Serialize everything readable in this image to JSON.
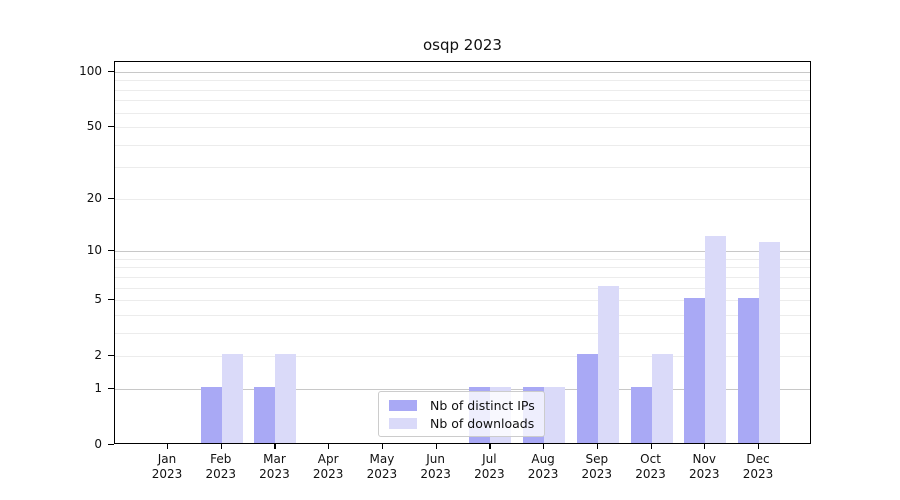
{
  "title": "osqp 2023",
  "chart_data": {
    "type": "bar",
    "title": "osqp 2023",
    "categories": [
      "Jan",
      "Feb",
      "Mar",
      "Apr",
      "May",
      "Jun",
      "Jul",
      "Aug",
      "Sep",
      "Oct",
      "Nov",
      "Dec"
    ],
    "year_label": "2023",
    "series": [
      {
        "name": "Nb of distinct IPs",
        "color": "#a9a9f5",
        "values": [
          0,
          1,
          1,
          0,
          0,
          0,
          1,
          1,
          2,
          1,
          5,
          5
        ]
      },
      {
        "name": "Nb of downloads",
        "color": "#dadaf9",
        "values": [
          0,
          2,
          2,
          0,
          0,
          0,
          1,
          1,
          6,
          2,
          12,
          11
        ]
      }
    ],
    "xlabel": "",
    "ylabel": "",
    "y_axis": {
      "scale": "log1p",
      "tick_labels": [
        0,
        1,
        2,
        5,
        10,
        20,
        50,
        100
      ],
      "ylim": [
        0,
        100
      ],
      "major_gridlines": [
        1,
        10,
        100
      ],
      "minor_gridlines": [
        2,
        3,
        4,
        5,
        6,
        7,
        8,
        9,
        20,
        30,
        40,
        50,
        60,
        70,
        80,
        90
      ]
    },
    "legend": {
      "position": "lower-center",
      "entries": [
        "Nb of distinct IPs",
        "Nb of downloads"
      ]
    },
    "grid": true
  },
  "style_colors": {
    "bar_dark": "#a9a9f5",
    "bar_light": "#dadaf9",
    "grid_major": "#c8c8c8",
    "grid_minor": "#ececec",
    "spine": "#000000",
    "text": "#111111"
  }
}
